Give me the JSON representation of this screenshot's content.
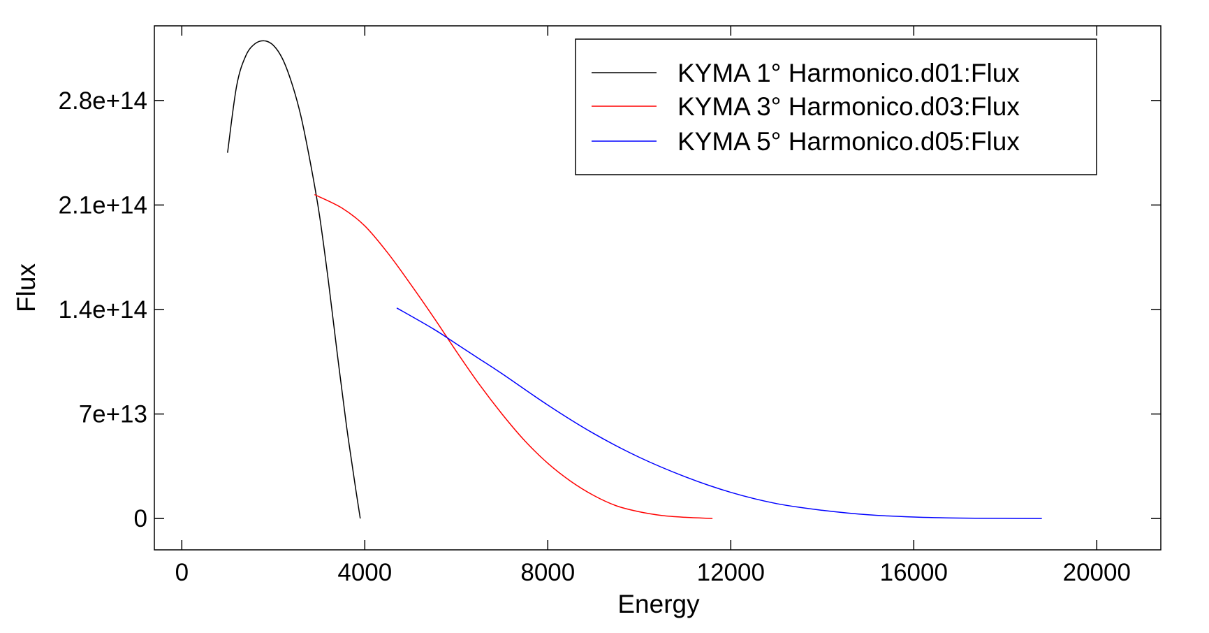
{
  "chart_data": {
    "type": "line",
    "title": "",
    "xlabel": "Energy",
    "ylabel": "Flux",
    "xlim": [
      -600,
      21400
    ],
    "ylim": [
      -21000000000000.0,
      330000000000000.0
    ],
    "x_ticks": [
      0,
      4000,
      8000,
      12000,
      16000,
      20000
    ],
    "x_tick_labels": [
      "0",
      "4000",
      "8000",
      "12000",
      "16000",
      "20000"
    ],
    "y_ticks": [
      0,
      70000000000000.0,
      140000000000000.0,
      210000000000000.0,
      280000000000000.0
    ],
    "y_tick_labels": [
      "0",
      "7e+13",
      "1.4e+14",
      "2.1e+14",
      "2.8e+14"
    ],
    "grid": false,
    "legend_position": "top-right",
    "series": [
      {
        "name": "KYMA 1° Harmonico.d01:Flux",
        "color": "#000000",
        "x": [
          1000,
          1200,
          1400,
          1600,
          1800,
          2000,
          2200,
          2400,
          2600,
          2800,
          3000,
          3200,
          3400,
          3600,
          3800,
          3900
        ],
        "y": [
          245000000000000.0,
          290000000000000.0,
          310000000000000.0,
          318000000000000.0,
          320000000000000.0,
          317000000000000.0,
          308000000000000.0,
          292000000000000.0,
          270000000000000.0,
          240000000000000.0,
          205000000000000.0,
          160000000000000.0,
          110000000000000.0,
          62000000000000.0,
          20000000000000.0,
          0
        ]
      },
      {
        "name": "KYMA 3° Harmonico.d03:Flux",
        "color": "#ff0000",
        "x": [
          2900,
          3500,
          4000,
          4500,
          5000,
          5500,
          6000,
          6500,
          7000,
          7500,
          8000,
          8500,
          9000,
          9500,
          10000,
          10500,
          11000,
          11600
        ],
        "y": [
          217000000000000.0,
          208000000000000.0,
          196000000000000.0,
          178000000000000.0,
          157000000000000.0,
          135000000000000.0,
          112000000000000.0,
          90000000000000.0,
          70000000000000.0,
          52000000000000.0,
          37000000000000.0,
          25000000000000.0,
          15500000000000.0,
          8500000000000.0,
          4500000000000.0,
          2000000000000.0,
          800000000000.0,
          0
        ]
      },
      {
        "name": "KYMA 5° Harmonico.d05:Flux",
        "color": "#0000ff",
        "x": [
          4700,
          5500,
          6000,
          6500,
          7000,
          8000,
          9000,
          10000,
          11000,
          12000,
          13000,
          14000,
          15000,
          16000,
          17000,
          18000,
          18800
        ],
        "y": [
          141000000000000.0,
          127000000000000.0,
          117000000000000.0,
          107000000000000.0,
          97000000000000.0,
          76000000000000.0,
          57000000000000.0,
          41000000000000.0,
          28000000000000.0,
          17500000000000.0,
          10000000000000.0,
          5500000000000.0,
          2500000000000.0,
          1000000000000.0,
          300000000000.0,
          100000000000.0,
          0
        ]
      }
    ]
  }
}
